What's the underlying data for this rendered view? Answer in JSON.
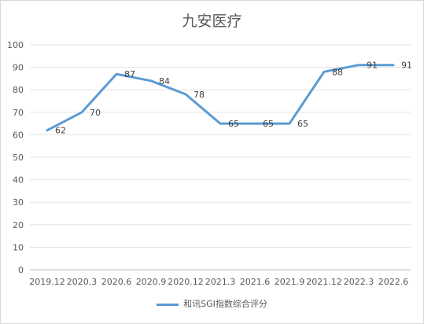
{
  "chart_data": {
    "type": "line",
    "title": "九安医疗",
    "categories": [
      "2019.12",
      "2020.3",
      "2020.6",
      "2020.9",
      "2020.12",
      "2021.3",
      "2021.6",
      "2021.9",
      "2021.12",
      "2022.3",
      "2022.6"
    ],
    "series": [
      {
        "name": "和讯SGI指数综合评分",
        "values": [
          62,
          70,
          87,
          84,
          78,
          65,
          65,
          65,
          88,
          91,
          91
        ],
        "color": "#5b9bd5"
      }
    ],
    "ylim": [
      0,
      100
    ],
    "yticks": [
      0,
      10,
      20,
      30,
      40,
      50,
      60,
      70,
      80,
      90,
      100
    ],
    "grid": true,
    "legend": "bottom"
  }
}
